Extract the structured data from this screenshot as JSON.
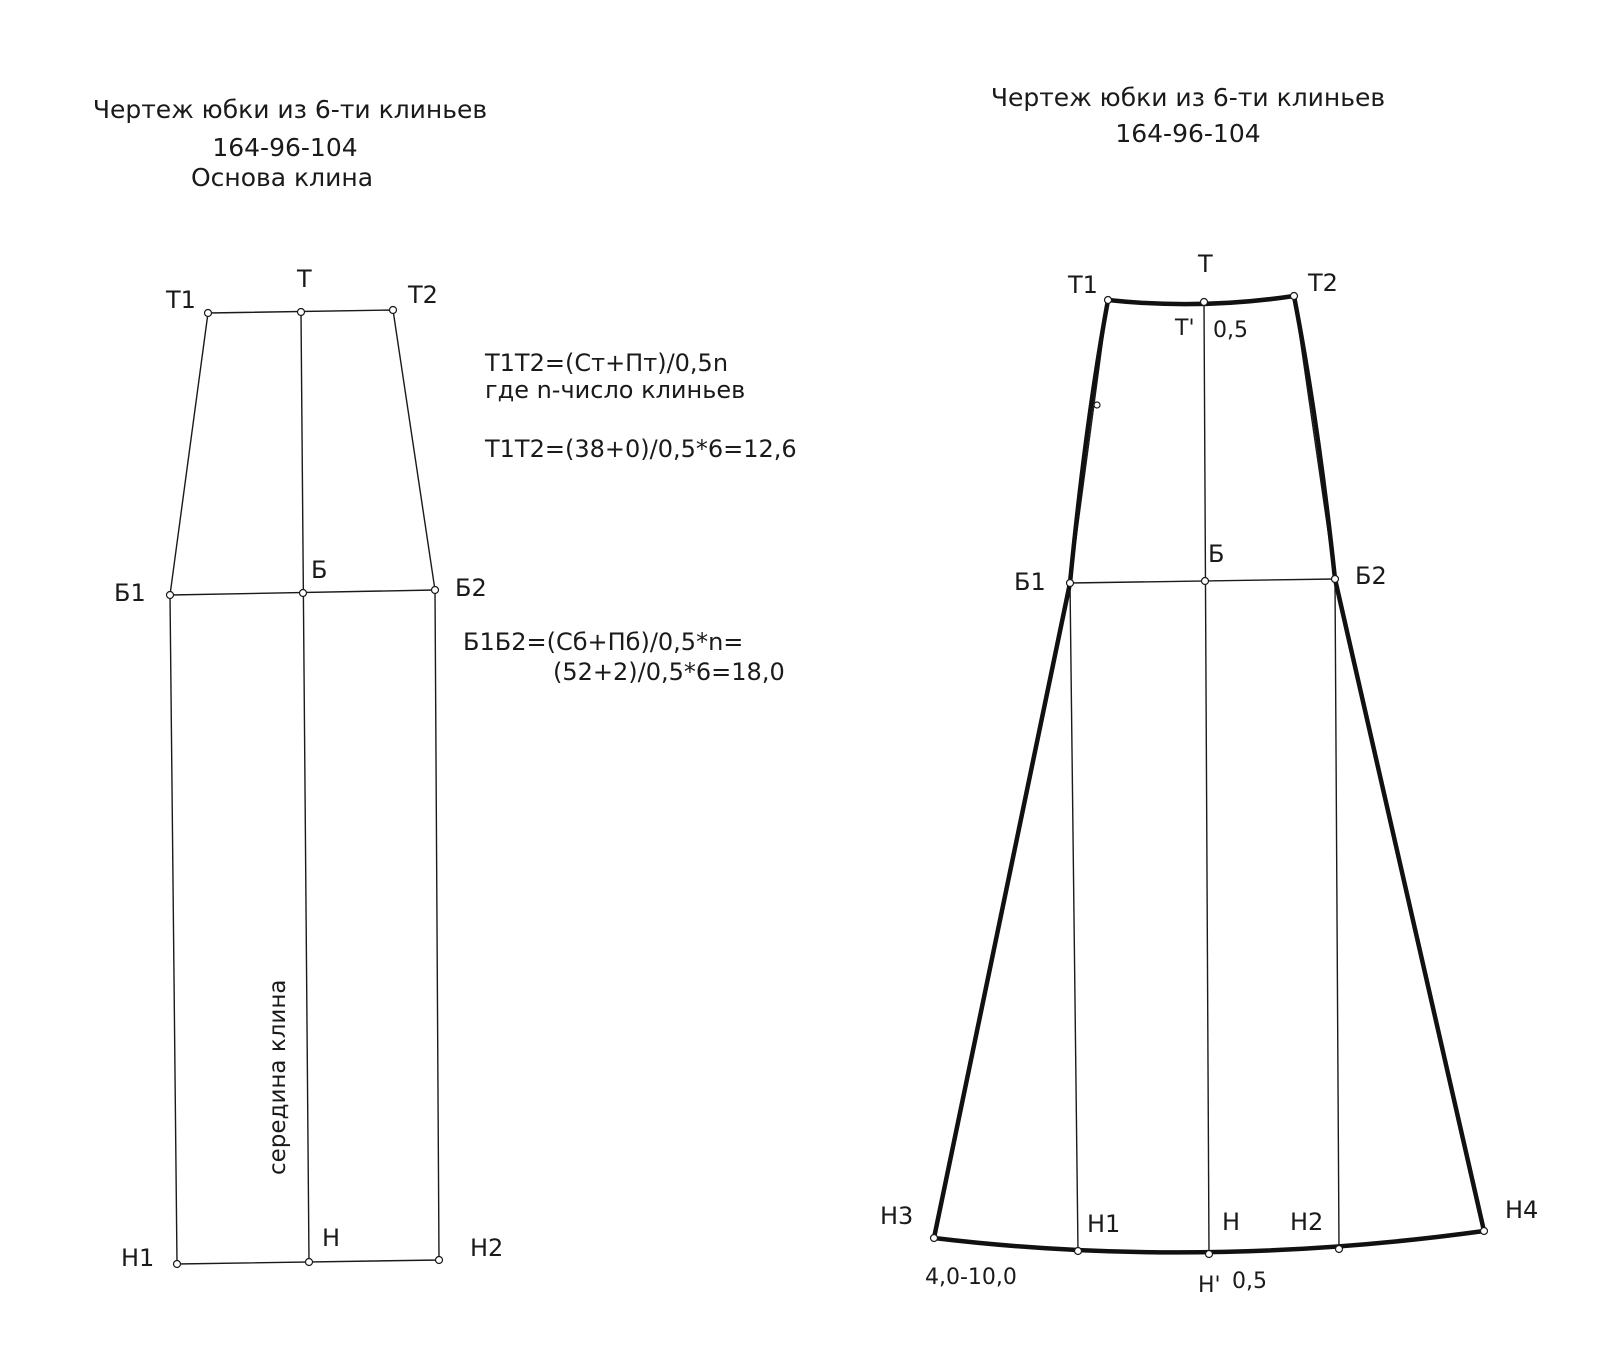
{
  "left_drawing": {
    "title_line1": "Чертеж юбки из 6-ти клиньев",
    "title_line2": "164-96-104",
    "title_line3": "Основа клина",
    "points": {
      "T": "Т",
      "T1": "Т1",
      "T2": "Т2",
      "B": "Б",
      "B1": "Б1",
      "B2": "Б2",
      "H": "Н",
      "H1": "Н1",
      "H2": "Н2"
    },
    "center_label": "середина клина",
    "formula_waist_1": "Т1Т2=(Ст+Пт)/0,5n",
    "formula_waist_2": "где n-число клиньев",
    "formula_waist_3": "Т1Т2=(38+0)/0,5*6=12,6",
    "formula_hip_1": "Б1Б2=(Сб+Пб)/0,5*n=",
    "formula_hip_2": "(52+2)/0,5*6=18,0"
  },
  "right_drawing": {
    "title_line1": "Чертеж юбки из 6-ти клиньев",
    "title_line2": "164-96-104",
    "points": {
      "T": "Т",
      "T1": "Т1",
      "T2": "Т2",
      "T_prime": "Т'",
      "B": "Б",
      "B1": "Б1",
      "B2": "Б2",
      "H": "Н",
      "H1": "Н1",
      "H2": "Н2",
      "H3": "Н3",
      "H4": "Н4",
      "H_prime": "Н'"
    },
    "waist_offset": "0,5",
    "hem_flare": "4,0-10,0",
    "hem_offset": "0,5"
  }
}
